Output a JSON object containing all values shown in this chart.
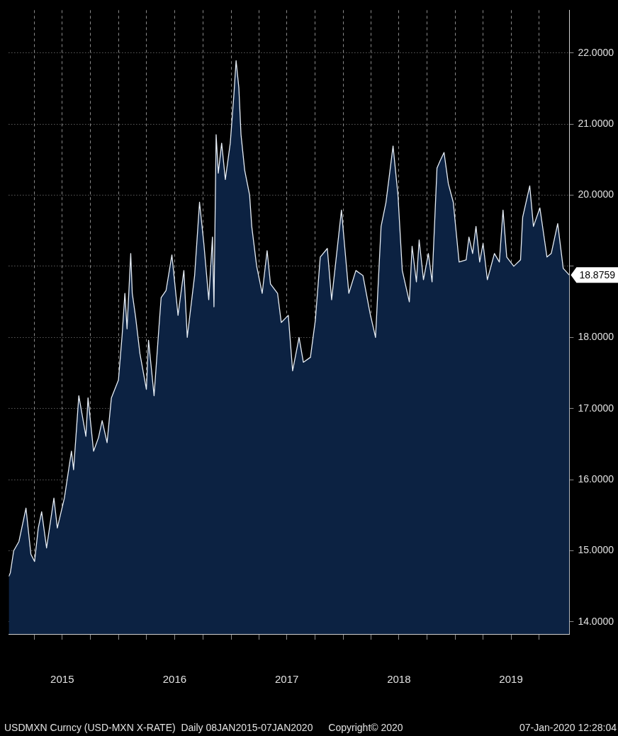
{
  "chart_data": {
    "type": "area",
    "x": [
      "2015-01-08",
      "2015-01-13",
      "2015-01-24",
      "2015-02-10",
      "2015-03-05",
      "2015-03-21",
      "2015-04-02",
      "2015-04-14",
      "2015-04-25",
      "2015-05-11",
      "2015-06-04",
      "2015-06-15",
      "2015-07-08",
      "2015-07-31",
      "2015-08-07",
      "2015-08-24",
      "2015-09-16",
      "2015-09-23",
      "2015-10-11",
      "2015-10-27",
      "2015-11-08",
      "2015-11-24",
      "2015-12-08",
      "2015-12-31",
      "2016-01-12",
      "2016-01-21",
      "2016-01-28",
      "2016-02-09",
      "2016-02-14",
      "2016-02-25",
      "2016-03-10",
      "2016-03-31",
      "2016-04-07",
      "2016-04-25",
      "2016-05-11",
      "2016-05-18",
      "2016-06-03",
      "2016-06-22",
      "2016-07-12",
      "2016-07-31",
      "2016-08-11",
      "2016-09-04",
      "2016-09-20",
      "2016-10-04",
      "2016-10-20",
      "2016-11-01",
      "2016-11-06",
      "2016-11-13",
      "2016-11-20",
      "2016-12-01",
      "2016-12-13",
      "2016-12-29",
      "2017-01-10",
      "2017-01-17",
      "2017-01-26",
      "2017-02-02",
      "2017-02-14",
      "2017-03-02",
      "2017-03-09",
      "2017-03-25",
      "2017-04-12",
      "2017-04-28",
      "2017-05-09",
      "2017-06-01",
      "2017-06-13",
      "2017-07-06",
      "2017-07-20",
      "2017-08-10",
      "2017-08-24",
      "2017-09-16",
      "2017-10-02",
      "2017-10-18",
      "2017-11-10",
      "2017-11-24",
      "2017-12-26",
      "2018-01-19",
      "2018-02-11",
      "2018-03-06",
      "2018-03-29",
      "2018-04-16",
      "2018-05-04",
      "2018-05-20",
      "2018-06-12",
      "2018-06-28",
      "2018-07-12",
      "2018-08-04",
      "2018-08-13",
      "2018-08-27",
      "2018-09-05",
      "2018-09-19",
      "2018-10-05",
      "2018-10-17",
      "2018-11-02",
      "2018-11-14",
      "2018-11-25",
      "2018-12-09",
      "2018-12-25",
      "2019-01-13",
      "2019-02-05",
      "2019-02-14",
      "2019-02-26",
      "2019-03-09",
      "2019-03-21",
      "2019-04-01",
      "2019-04-15",
      "2019-05-08",
      "2019-05-24",
      "2019-06-05",
      "2019-06-17",
      "2019-07-10",
      "2019-08-01",
      "2019-08-08",
      "2019-08-31",
      "2019-09-12",
      "2019-10-03",
      "2019-10-26",
      "2019-11-09",
      "2019-11-30",
      "2019-12-18",
      "2020-01-07"
    ],
    "series": [
      {
        "color": "#0c2242",
        "values": [
          14.64,
          14.69,
          15.0,
          15.13,
          15.6,
          14.95,
          14.85,
          15.32,
          15.55,
          15.04,
          15.74,
          15.32,
          15.74,
          16.4,
          16.14,
          17.18,
          16.61,
          17.15,
          16.4,
          16.59,
          16.83,
          16.52,
          17.15,
          17.4,
          18.03,
          18.62,
          18.12,
          19.18,
          18.62,
          18.28,
          17.77,
          17.27,
          17.96,
          17.18,
          18.15,
          18.56,
          18.66,
          19.16,
          18.31,
          18.94,
          18.0,
          18.87,
          19.9,
          19.32,
          18.53,
          19.41,
          18.43,
          20.85,
          20.31,
          20.73,
          20.22,
          20.73,
          21.42,
          21.89,
          21.51,
          20.85,
          20.35,
          20.0,
          19.56,
          19.0,
          18.62,
          19.22,
          18.75,
          18.62,
          18.21,
          18.31,
          17.53,
          18.0,
          17.65,
          17.72,
          18.24,
          19.13,
          19.25,
          18.53,
          19.79,
          18.62,
          18.94,
          18.87,
          18.34,
          18.0,
          19.56,
          19.9,
          20.69,
          20.0,
          18.94,
          18.5,
          19.28,
          18.78,
          19.37,
          18.81,
          19.18,
          18.78,
          20.38,
          20.5,
          20.6,
          20.16,
          19.9,
          19.06,
          19.09,
          19.41,
          19.18,
          19.56,
          19.06,
          19.32,
          18.81,
          19.18,
          19.06,
          19.79,
          19.13,
          19.0,
          19.09,
          19.69,
          20.13,
          19.56,
          19.82,
          19.13,
          19.18,
          19.6,
          18.97,
          18.8759
        ]
      }
    ],
    "xlim": [
      "2015-01-08",
      "2020-01-07"
    ],
    "xticks": [
      {
        "value": "2015-04-01",
        "label": null
      },
      {
        "value": "2015-07-01",
        "label": "2015"
      },
      {
        "value": "2015-10-01",
        "label": null
      },
      {
        "value": "2016-01-01",
        "label": null
      },
      {
        "value": "2016-04-01",
        "label": null
      },
      {
        "value": "2016-07-01",
        "label": "2016"
      },
      {
        "value": "2016-10-01",
        "label": null
      },
      {
        "value": "2017-01-01",
        "label": null
      },
      {
        "value": "2017-04-01",
        "label": null
      },
      {
        "value": "2017-07-01",
        "label": "2017"
      },
      {
        "value": "2017-10-01",
        "label": null
      },
      {
        "value": "2018-01-01",
        "label": null
      },
      {
        "value": "2018-04-01",
        "label": null
      },
      {
        "value": "2018-07-01",
        "label": "2018"
      },
      {
        "value": "2018-10-01",
        "label": null
      },
      {
        "value": "2019-01-01",
        "label": null
      },
      {
        "value": "2019-04-01",
        "label": null
      },
      {
        "value": "2019-07-01",
        "label": "2019"
      },
      {
        "value": "2019-10-01",
        "label": null
      }
    ],
    "ylim": [
      13.83,
      22.6
    ],
    "yticks": [
      {
        "value": 14,
        "label": "14.0000"
      },
      {
        "value": 15,
        "label": "15.0000"
      },
      {
        "value": 16,
        "label": "16.0000"
      },
      {
        "value": 17,
        "label": "17.0000"
      },
      {
        "value": 18,
        "label": "18.0000"
      },
      {
        "value": 19,
        "label": null
      },
      {
        "value": 20,
        "label": "20.0000"
      },
      {
        "value": 21,
        "label": "21.0000"
      },
      {
        "value": 22,
        "label": "22.0000"
      }
    ],
    "grid": true,
    "marker": "none",
    "annotations": [
      {
        "text": "18.8759",
        "x": "2020-01-07",
        "y": 18.8759
      },
      "USDMXN Curncy (USD-MXN X-RATE)  Daily 08JAN2015-07JAN2020",
      "Copyright© 2020",
      "07-Jan-2020 12:28:04"
    ]
  }
}
